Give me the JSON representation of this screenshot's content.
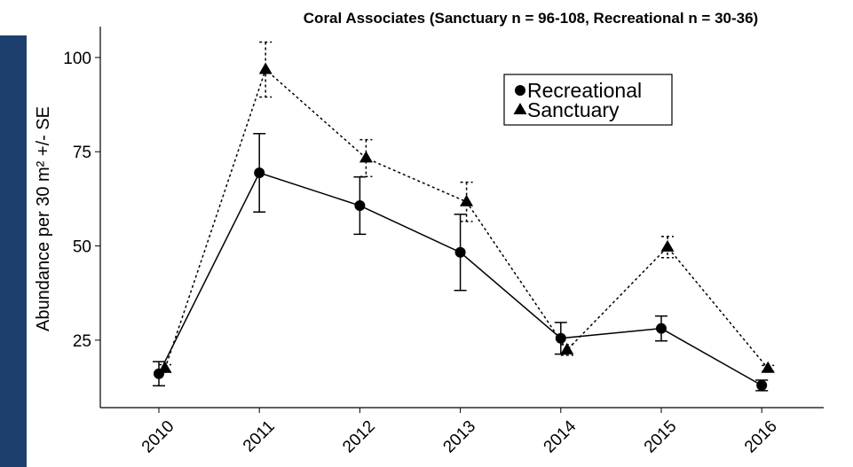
{
  "chart_data": {
    "type": "line",
    "title": "Coral Associates (Sanctuary n = 96-108, Recreational n = 30-36)",
    "y_label": "Abundance per 30 m² +/- SE",
    "categories": [
      "2010",
      "2011",
      "2012",
      "2013",
      "2014",
      "2015",
      "2016"
    ],
    "series": [
      {
        "name": "Recreational",
        "color": "#000000",
        "marker": "circle",
        "dash": false,
        "values": [
          16.1,
          69.4,
          60.7,
          48.3,
          25.5,
          28.1,
          13.0
        ],
        "errors": [
          3.2,
          10.4,
          7.6,
          10.1,
          4.2,
          3.3,
          1.4
        ]
      },
      {
        "name": "Sanctuary",
        "color": "#000000",
        "marker": "triangle",
        "dash": true,
        "values": [
          17.5,
          96.8,
          73.3,
          61.7,
          22.4,
          49.7,
          17.5
        ],
        "errors": [
          1.0,
          7.3,
          4.9,
          5.2,
          1.4,
          2.8,
          0.8
        ]
      }
    ],
    "ylim": [
      7.1,
      108.2
    ],
    "yticks": [
      25,
      50,
      75,
      100
    ],
    "grid": false,
    "legend": "top-right"
  }
}
